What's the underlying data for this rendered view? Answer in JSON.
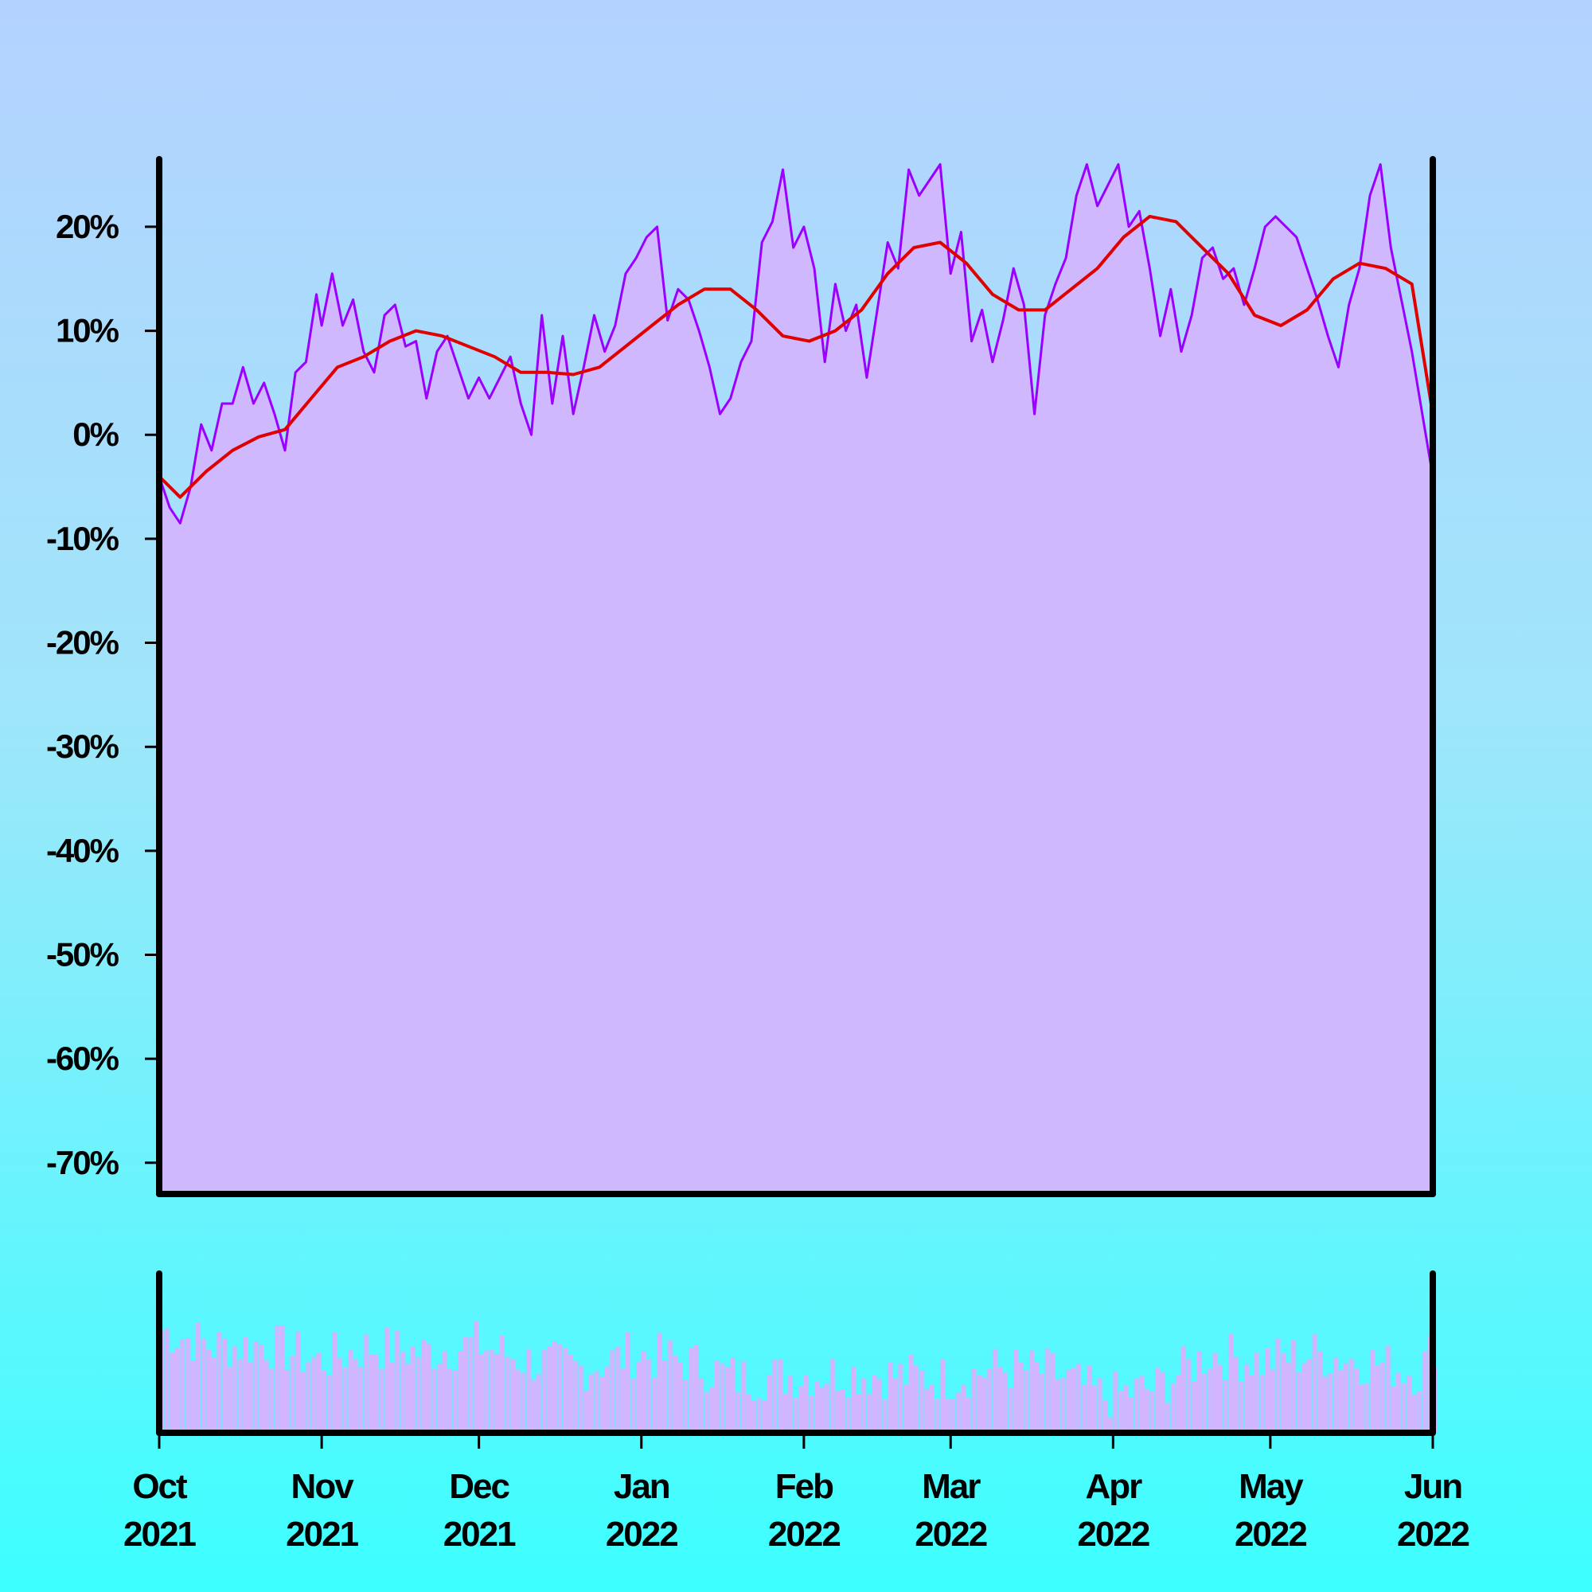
{
  "chart_data": [
    {
      "type": "line",
      "title": "",
      "xlabel": "",
      "ylabel": "",
      "x_range": [
        "2021-10-01",
        "2022-06-01"
      ],
      "ylim": [
        -0.73,
        0.265
      ],
      "y_ticks": [
        0.2,
        0.1,
        0.0,
        -0.1,
        -0.2,
        -0.3,
        -0.4,
        -0.5,
        -0.6,
        -0.7
      ],
      "y_tick_labels": [
        "20%",
        "10%",
        "0%",
        "-10%",
        "-20%",
        "-30%",
        "-40%",
        "-50%",
        "-60%",
        "-70%"
      ],
      "x_ticks": [
        "2021-10-01",
        "2021-11-01",
        "2021-12-01",
        "2022-01-01",
        "2022-02-01",
        "2022-03-01",
        "2022-04-01",
        "2022-05-01",
        "2022-06-01"
      ],
      "x_tick_labels": [
        {
          "month": "Oct",
          "year": "2021"
        },
        {
          "month": "Nov",
          "year": "2021"
        },
        {
          "month": "Dec",
          "year": "2021"
        },
        {
          "month": "Jan",
          "year": "2022"
        },
        {
          "month": "Feb",
          "year": "2022"
        },
        {
          "month": "Mar",
          "year": "2022"
        },
        {
          "month": "Apr",
          "year": "2022"
        },
        {
          "month": "May",
          "year": "2022"
        },
        {
          "month": "Jun",
          "year": "2022"
        }
      ],
      "grid": false,
      "area_fill": true,
      "series": [
        {
          "color": "#9b00ff",
          "points": [
            [
              "2021-10-01",
              -0.04
            ],
            [
              "2021-10-03",
              -0.07
            ],
            [
              "2021-10-05",
              -0.085
            ],
            [
              "2021-10-07",
              -0.05
            ],
            [
              "2021-10-09",
              0.01
            ],
            [
              "2021-10-11",
              -0.015
            ],
            [
              "2021-10-13",
              0.03
            ],
            [
              "2021-10-15",
              0.03
            ],
            [
              "2021-10-17",
              0.065
            ],
            [
              "2021-10-19",
              0.03
            ],
            [
              "2021-10-21",
              0.05
            ],
            [
              "2021-10-23",
              0.02
            ],
            [
              "2021-10-25",
              -0.015
            ],
            [
              "2021-10-27",
              0.06
            ],
            [
              "2021-10-29",
              0.07
            ],
            [
              "2021-10-31",
              0.135
            ],
            [
              "2021-11-01",
              0.105
            ],
            [
              "2021-11-03",
              0.155
            ],
            [
              "2021-11-05",
              0.105
            ],
            [
              "2021-11-07",
              0.13
            ],
            [
              "2021-11-09",
              0.08
            ],
            [
              "2021-11-11",
              0.06
            ],
            [
              "2021-11-13",
              0.115
            ],
            [
              "2021-11-15",
              0.125
            ],
            [
              "2021-11-17",
              0.085
            ],
            [
              "2021-11-19",
              0.09
            ],
            [
              "2021-11-21",
              0.035
            ],
            [
              "2021-11-23",
              0.08
            ],
            [
              "2021-11-25",
              0.095
            ],
            [
              "2021-11-27",
              0.065
            ],
            [
              "2021-11-29",
              0.035
            ],
            [
              "2021-12-01",
              0.055
            ],
            [
              "2021-12-03",
              0.035
            ],
            [
              "2021-12-05",
              0.055
            ],
            [
              "2021-12-07",
              0.075
            ],
            [
              "2021-12-09",
              0.03
            ],
            [
              "2021-12-11",
              0.0
            ],
            [
              "2021-12-13",
              0.115
            ],
            [
              "2021-12-15",
              0.03
            ],
            [
              "2021-12-17",
              0.095
            ],
            [
              "2021-12-19",
              0.02
            ],
            [
              "2021-12-21",
              0.065
            ],
            [
              "2021-12-23",
              0.115
            ],
            [
              "2021-12-25",
              0.08
            ],
            [
              "2021-12-27",
              0.105
            ],
            [
              "2021-12-29",
              0.155
            ],
            [
              "2021-12-31",
              0.17
            ],
            [
              "2022-01-02",
              0.19
            ],
            [
              "2022-01-04",
              0.2
            ],
            [
              "2022-01-06",
              0.11
            ],
            [
              "2022-01-08",
              0.14
            ],
            [
              "2022-01-10",
              0.13
            ],
            [
              "2022-01-12",
              0.1
            ],
            [
              "2022-01-14",
              0.065
            ],
            [
              "2022-01-16",
              0.02
            ],
            [
              "2022-01-18",
              0.035
            ],
            [
              "2022-01-20",
              0.07
            ],
            [
              "2022-01-22",
              0.09
            ],
            [
              "2022-01-24",
              0.185
            ],
            [
              "2022-01-26",
              0.205
            ],
            [
              "2022-01-28",
              0.255
            ],
            [
              "2022-01-30",
              0.18
            ],
            [
              "2022-02-01",
              0.2
            ],
            [
              "2022-02-03",
              0.16
            ],
            [
              "2022-02-05",
              0.07
            ],
            [
              "2022-02-07",
              0.145
            ],
            [
              "2022-02-09",
              0.1
            ],
            [
              "2022-02-11",
              0.125
            ],
            [
              "2022-02-13",
              0.055
            ],
            [
              "2022-02-15",
              0.12
            ],
            [
              "2022-02-17",
              0.185
            ],
            [
              "2022-02-19",
              0.16
            ],
            [
              "2022-02-21",
              0.255
            ],
            [
              "2022-02-23",
              0.23
            ],
            [
              "2022-02-25",
              0.245
            ],
            [
              "2022-02-27",
              0.26
            ],
            [
              "2022-03-01",
              0.155
            ],
            [
              "2022-03-03",
              0.195
            ],
            [
              "2022-03-05",
              0.09
            ],
            [
              "2022-03-07",
              0.12
            ],
            [
              "2022-03-09",
              0.07
            ],
            [
              "2022-03-11",
              0.11
            ],
            [
              "2022-03-13",
              0.16
            ],
            [
              "2022-03-15",
              0.125
            ],
            [
              "2022-03-17",
              0.02
            ],
            [
              "2022-03-19",
              0.115
            ],
            [
              "2022-03-21",
              0.145
            ],
            [
              "2022-03-23",
              0.17
            ],
            [
              "2022-03-25",
              0.23
            ],
            [
              "2022-03-27",
              0.26
            ],
            [
              "2022-03-29",
              0.22
            ],
            [
              "2022-03-31",
              0.24
            ],
            [
              "2022-04-02",
              0.26
            ],
            [
              "2022-04-04",
              0.2
            ],
            [
              "2022-04-06",
              0.215
            ],
            [
              "2022-04-08",
              0.16
            ],
            [
              "2022-04-10",
              0.095
            ],
            [
              "2022-04-12",
              0.14
            ],
            [
              "2022-04-14",
              0.08
            ],
            [
              "2022-04-16",
              0.115
            ],
            [
              "2022-04-18",
              0.17
            ],
            [
              "2022-04-20",
              0.18
            ],
            [
              "2022-04-22",
              0.15
            ],
            [
              "2022-04-24",
              0.16
            ],
            [
              "2022-04-26",
              0.125
            ],
            [
              "2022-04-28",
              0.16
            ],
            [
              "2022-04-30",
              0.2
            ],
            [
              "2022-05-02",
              0.21
            ],
            [
              "2022-05-04",
              0.2
            ],
            [
              "2022-05-06",
              0.19
            ],
            [
              "2022-05-08",
              0.16
            ],
            [
              "2022-05-10",
              0.13
            ],
            [
              "2022-05-12",
              0.095
            ],
            [
              "2022-05-14",
              0.065
            ],
            [
              "2022-05-16",
              0.125
            ],
            [
              "2022-05-18",
              0.16
            ],
            [
              "2022-05-20",
              0.23
            ],
            [
              "2022-05-22",
              0.26
            ],
            [
              "2022-05-24",
              0.18
            ],
            [
              "2022-05-26",
              0.13
            ],
            [
              "2022-05-28",
              0.08
            ],
            [
              "2022-05-30",
              0.02
            ],
            [
              "2022-06-01",
              -0.04
            ]
          ]
        },
        {
          "color": "#e00000",
          "points": [
            [
              "2021-10-01",
              -0.04
            ],
            [
              "2021-10-05",
              -0.06
            ],
            [
              "2021-10-10",
              -0.035
            ],
            [
              "2021-10-15",
              -0.015
            ],
            [
              "2021-10-20",
              -0.002
            ],
            [
              "2021-10-25",
              0.005
            ],
            [
              "2021-10-30",
              0.035
            ],
            [
              "2021-11-04",
              0.065
            ],
            [
              "2021-11-09",
              0.075
            ],
            [
              "2021-11-14",
              0.09
            ],
            [
              "2021-11-19",
              0.1
            ],
            [
              "2021-11-24",
              0.095
            ],
            [
              "2021-11-29",
              0.085
            ],
            [
              "2021-12-04",
              0.075
            ],
            [
              "2021-12-09",
              0.06
            ],
            [
              "2021-12-14",
              0.06
            ],
            [
              "2021-12-19",
              0.058
            ],
            [
              "2021-12-24",
              0.065
            ],
            [
              "2021-12-29",
              0.085
            ],
            [
              "2022-01-03",
              0.105
            ],
            [
              "2022-01-08",
              0.125
            ],
            [
              "2022-01-13",
              0.14
            ],
            [
              "2022-01-18",
              0.14
            ],
            [
              "2022-01-23",
              0.12
            ],
            [
              "2022-01-28",
              0.095
            ],
            [
              "2022-02-02",
              0.09
            ],
            [
              "2022-02-07",
              0.1
            ],
            [
              "2022-02-12",
              0.12
            ],
            [
              "2022-02-17",
              0.155
            ],
            [
              "2022-02-22",
              0.18
            ],
            [
              "2022-02-27",
              0.185
            ],
            [
              "2022-03-04",
              0.165
            ],
            [
              "2022-03-09",
              0.135
            ],
            [
              "2022-03-14",
              0.12
            ],
            [
              "2022-03-19",
              0.12
            ],
            [
              "2022-03-24",
              0.14
            ],
            [
              "2022-03-29",
              0.16
            ],
            [
              "2022-04-03",
              0.19
            ],
            [
              "2022-04-08",
              0.21
            ],
            [
              "2022-04-13",
              0.205
            ],
            [
              "2022-04-18",
              0.18
            ],
            [
              "2022-04-23",
              0.155
            ],
            [
              "2022-04-28",
              0.115
            ],
            [
              "2022-05-03",
              0.105
            ],
            [
              "2022-05-08",
              0.12
            ],
            [
              "2022-05-13",
              0.15
            ],
            [
              "2022-05-18",
              0.165
            ],
            [
              "2022-05-23",
              0.16
            ],
            [
              "2022-05-28",
              0.145
            ],
            [
              "2022-06-01",
              0.02
            ]
          ]
        }
      ]
    },
    {
      "type": "bar",
      "title": "",
      "xlabel": "",
      "ylabel": "",
      "x_range": [
        "2021-10-01",
        "2022-06-01"
      ],
      "grid": false,
      "bar_color": "#d2b4ff",
      "bar_interval_days": 1,
      "anchors": [
        [
          "2021-10-01",
          0.72
        ],
        [
          "2021-10-11",
          0.6
        ],
        [
          "2021-10-21",
          0.62
        ],
        [
          "2021-10-31",
          0.5
        ],
        [
          "2021-11-10",
          0.6
        ],
        [
          "2021-11-20",
          0.56
        ],
        [
          "2021-11-30",
          0.62
        ],
        [
          "2021-12-10",
          0.5
        ],
        [
          "2021-12-20",
          0.45
        ],
        [
          "2021-12-30",
          0.55
        ],
        [
          "2022-01-09",
          0.5
        ],
        [
          "2022-01-19",
          0.38
        ],
        [
          "2022-01-29",
          0.4
        ],
        [
          "2022-02-08",
          0.42
        ],
        [
          "2022-02-18",
          0.4
        ],
        [
          "2022-02-28",
          0.38
        ],
        [
          "2022-03-10",
          0.45
        ],
        [
          "2022-03-20",
          0.42
        ],
        [
          "2022-03-30",
          0.25
        ],
        [
          "2022-04-09",
          0.32
        ],
        [
          "2022-04-19",
          0.55
        ],
        [
          "2022-04-29",
          0.5
        ],
        [
          "2022-05-09",
          0.55
        ],
        [
          "2022-05-19",
          0.5
        ],
        [
          "2022-05-29",
          0.42
        ],
        [
          "2022-06-01",
          0.62
        ]
      ]
    }
  ]
}
